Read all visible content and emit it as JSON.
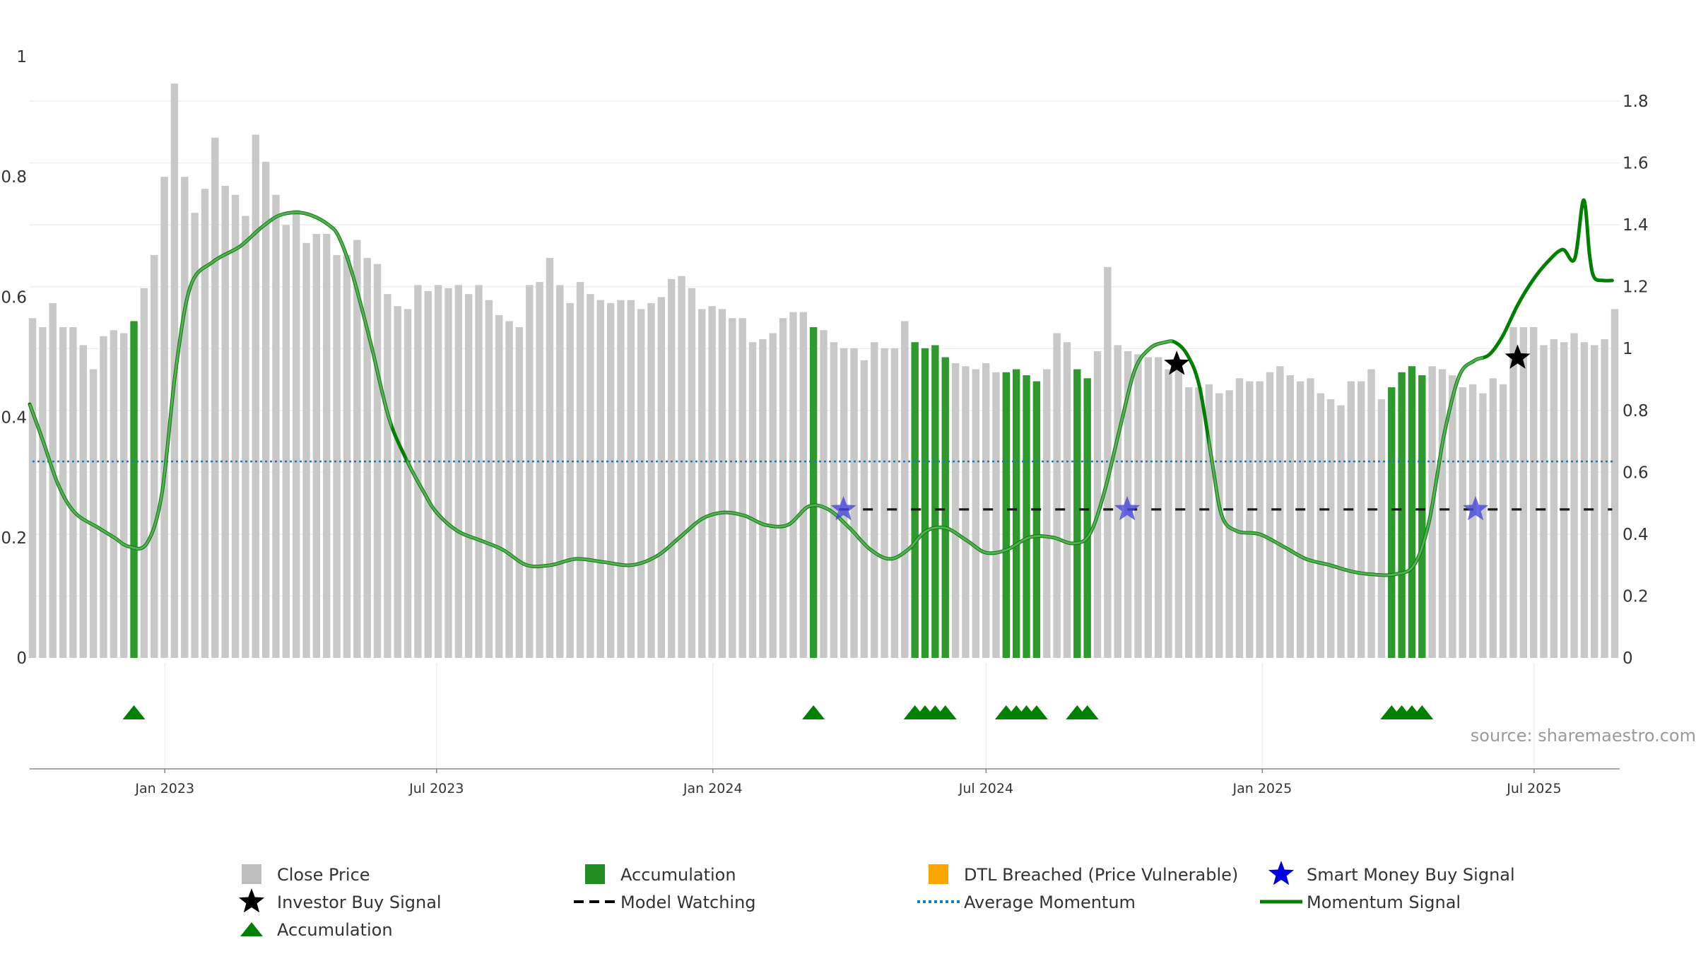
{
  "chart_data": {
    "type": "bar",
    "source_note": "source: sharemaestro.com",
    "x_axis": {
      "ticks": [
        "Jan 2023",
        "Jul 2023",
        "Jan 2024",
        "Jul 2024",
        "Jan 2025",
        "Jul 2025"
      ],
      "tick_dates": [
        "2023-01-01",
        "2023-07-01",
        "2024-01-01",
        "2024-07-01",
        "2025-01-01",
        "2025-07-01"
      ],
      "range": [
        "2022-10-03",
        "2025-08-27"
      ]
    },
    "y_left": {
      "range": [
        0,
        1
      ],
      "ticks": [
        "0",
        "0.2",
        "0.4",
        "0.6",
        "0.8",
        "1"
      ],
      "tick_values": [
        0,
        0.2,
        0.4,
        0.6,
        0.8,
        1
      ]
    },
    "y_right": {
      "range": [
        0,
        1.9
      ],
      "ticks": [
        "0",
        "0.2",
        "0.4",
        "0.6",
        "0.8",
        "1",
        "1.2",
        "1.4",
        "1.6",
        "1.8"
      ],
      "tick_values": [
        0,
        0.2,
        0.4,
        0.6,
        0.8,
        1,
        1.2,
        1.4,
        1.6,
        1.8
      ]
    },
    "grid": true,
    "legend_position": "bottom",
    "legend": [
      {
        "label": "Close Price",
        "symbol": "square",
        "color": "#bdbdbd"
      },
      {
        "label": "Accumulation",
        "symbol": "square",
        "color": "#228b22"
      },
      {
        "label": "DTL Breached (Price Vulnerable)",
        "symbol": "square",
        "color": "#ffa500"
      },
      {
        "label": "Smart Money Buy Signal",
        "symbol": "star",
        "color": "#0000e0"
      },
      {
        "label": "Investor Buy Signal",
        "symbol": "star",
        "color": "#000000"
      },
      {
        "label": "Model Watching",
        "symbol": "dash",
        "color": "#000000"
      },
      {
        "label": "Average Momentum",
        "symbol": "dot",
        "color": "#1f77b4"
      },
      {
        "label": "Momentum Signal",
        "symbol": "line",
        "color": "#008000"
      },
      {
        "label": "Accumulation",
        "symbol": "triangle",
        "color": "#008000"
      }
    ],
    "colors": {
      "close_price": "#c8c8c8",
      "accumulation": "#2e9a2e",
      "momentum": "#008000",
      "average_momentum": "#1f77b4",
      "smart_money": "#4646dc",
      "investor": "#000000",
      "triangle": "#008000"
    },
    "close_price": [
      0.565,
      0.55,
      0.59,
      0.55,
      0.55,
      0.52,
      0.48,
      0.535,
      0.545,
      0.54,
      0.56,
      0.615,
      0.67,
      0.8,
      0.955,
      0.8,
      0.74,
      0.78,
      0.865,
      0.785,
      0.77,
      0.735,
      0.87,
      0.825,
      0.77,
      0.72,
      0.745,
      0.69,
      0.705,
      0.705,
      0.67,
      0.67,
      0.695,
      0.665,
      0.655,
      0.605,
      0.585,
      0.58,
      0.62,
      0.61,
      0.62,
      0.615,
      0.62,
      0.605,
      0.62,
      0.595,
      0.57,
      0.56,
      0.55,
      0.62,
      0.625,
      0.665,
      0.62,
      0.59,
      0.625,
      0.605,
      0.595,
      0.59,
      0.595,
      0.595,
      0.58,
      0.59,
      0.6,
      0.63,
      0.635,
      0.615,
      0.58,
      0.585,
      0.58,
      0.565,
      0.565,
      0.525,
      0.53,
      0.54,
      0.565,
      0.575,
      0.575,
      0.55,
      0.545,
      0.525,
      0.515,
      0.515,
      0.495,
      0.525,
      0.515,
      0.515,
      0.56,
      0.525,
      0.515,
      0.52,
      0.5,
      0.49,
      0.485,
      0.48,
      0.49,
      0.475,
      0.475,
      0.48,
      0.47,
      0.46,
      0.48,
      0.54,
      0.525,
      0.48,
      0.465,
      0.51,
      0.65,
      0.52,
      0.51,
      0.505,
      0.5,
      0.5,
      0.48,
      0.48,
      0.45,
      0.45,
      0.455,
      0.44,
      0.445,
      0.465,
      0.46,
      0.46,
      0.475,
      0.485,
      0.47,
      0.46,
      0.465,
      0.44,
      0.43,
      0.42,
      0.46,
      0.46,
      0.48,
      0.43,
      0.45,
      0.475,
      0.485,
      0.47,
      0.485,
      0.48,
      0.47,
      0.45,
      0.455,
      0.44,
      0.465,
      0.455,
      0.55,
      0.55,
      0.55,
      0.52,
      0.53,
      0.525,
      0.54,
      0.525,
      0.52,
      0.53,
      0.58
    ],
    "accumulation_bar_indices": [
      10,
      77,
      87,
      88,
      89,
      90,
      96,
      97,
      98,
      99,
      103,
      104,
      134,
      135,
      136,
      137
    ],
    "accumulation_triangle_indices": [
      10,
      77,
      87,
      88,
      89,
      90,
      96,
      97,
      98,
      99,
      103,
      104,
      134,
      135,
      136,
      137
    ],
    "momentum_x": [
      "2022-10-03",
      "2022-10-12",
      "2022-10-22",
      "2022-11-02",
      "2022-11-18",
      "2022-11-28",
      "2022-12-08",
      "2022-12-20",
      "2022-12-30",
      "2023-01-08",
      "2023-01-18",
      "2023-02-02",
      "2023-02-20",
      "2023-03-06",
      "2023-03-18",
      "2023-03-30",
      "2023-04-09",
      "2023-04-20",
      "2023-04-27",
      "2023-05-06",
      "2023-05-18",
      "2023-05-30",
      "2023-06-10",
      "2023-06-22",
      "2023-07-01",
      "2023-07-15",
      "2023-07-30",
      "2023-08-14",
      "2023-08-30",
      "2023-09-15",
      "2023-10-02",
      "2023-10-20",
      "2023-11-08",
      "2023-11-25",
      "2023-12-10",
      "2023-12-25",
      "2024-01-08",
      "2024-01-22",
      "2024-02-05",
      "2024-02-20",
      "2024-03-05",
      "2024-03-18",
      "2024-04-01",
      "2024-04-15",
      "2024-04-28",
      "2024-05-10",
      "2024-05-22",
      "2024-06-04",
      "2024-06-18",
      "2024-07-01",
      "2024-07-15",
      "2024-07-30",
      "2024-08-14",
      "2024-08-28",
      "2024-09-08",
      "2024-09-18",
      "2024-09-28",
      "2024-10-08",
      "2024-10-18",
      "2024-10-28",
      "2024-11-04",
      "2024-11-12",
      "2024-11-20",
      "2024-11-28",
      "2024-12-05",
      "2024-12-15",
      "2024-12-30",
      "2025-01-15",
      "2025-01-30",
      "2025-02-15",
      "2025-03-01",
      "2025-03-15",
      "2025-03-30",
      "2025-04-12",
      "2025-04-22",
      "2025-05-02",
      "2025-05-12",
      "2025-05-22",
      "2025-06-01",
      "2025-06-10",
      "2025-06-20",
      "2025-06-30",
      "2025-07-10",
      "2025-07-20",
      "2025-07-28",
      "2025-08-03",
      "2025-08-07",
      "2025-08-10",
      "2025-08-16",
      "2025-08-22"
    ],
    "momentum_y": [
      0.82,
      0.7,
      0.56,
      0.47,
      0.42,
      0.39,
      0.36,
      0.37,
      0.53,
      0.92,
      1.2,
      1.28,
      1.33,
      1.39,
      1.43,
      1.44,
      1.43,
      1.4,
      1.36,
      1.24,
      1.02,
      0.78,
      0.65,
      0.54,
      0.47,
      0.41,
      0.38,
      0.35,
      0.3,
      0.3,
      0.32,
      0.31,
      0.3,
      0.33,
      0.39,
      0.45,
      0.47,
      0.46,
      0.43,
      0.43,
      0.49,
      0.48,
      0.42,
      0.35,
      0.32,
      0.35,
      0.41,
      0.42,
      0.38,
      0.34,
      0.35,
      0.39,
      0.39,
      0.37,
      0.4,
      0.54,
      0.74,
      0.93,
      1.0,
      1.02,
      1.02,
      0.98,
      0.88,
      0.65,
      0.46,
      0.41,
      0.4,
      0.36,
      0.32,
      0.3,
      0.28,
      0.27,
      0.27,
      0.3,
      0.44,
      0.72,
      0.91,
      0.96,
      0.98,
      1.04,
      1.14,
      1.22,
      1.28,
      1.32,
      1.29,
      1.48,
      1.3,
      1.23,
      1.22,
      1.22
    ],
    "momentum_dim_ranges": [
      [
        "2022-10-03",
        "2023-06-01"
      ],
      [
        "2023-06-13",
        "2024-11-02"
      ],
      [
        "2024-11-28",
        "2025-05-28"
      ]
    ],
    "average_momentum": 0.635,
    "model_watching": {
      "value": 0.48,
      "from": "2024-03-25",
      "to": "2025-08-22"
    },
    "smart_money_buy_signals": [
      {
        "x": "2024-03-28",
        "y": 0.48
      },
      {
        "x": "2024-10-03",
        "y": 0.48
      },
      {
        "x": "2025-05-23",
        "y": 0.48
      }
    ],
    "investor_buy_signals": [
      {
        "x": "2024-11-05",
        "y": 0.95
      },
      {
        "x": "2025-06-20",
        "y": 0.97
      }
    ]
  }
}
